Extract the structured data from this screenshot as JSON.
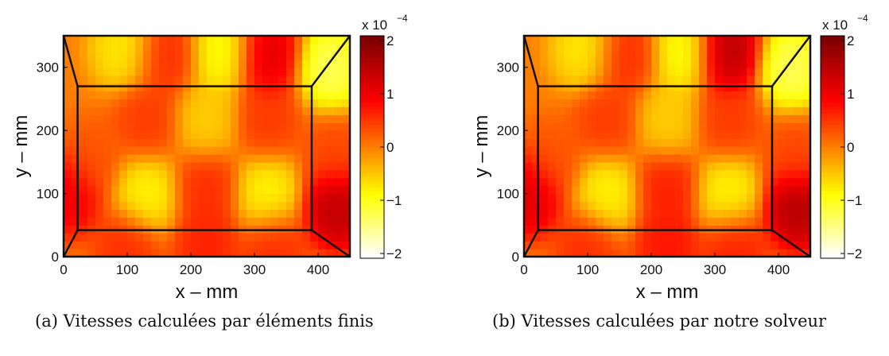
{
  "chart_data": [
    {
      "type": "heatmap",
      "panel_label": "(a)",
      "caption": "Vitesses calculées par éléments finis",
      "xlabel": "x  –  mm",
      "ylabel": "y  –  mm",
      "xlim": [
        0,
        450
      ],
      "ylim": [
        0,
        350
      ],
      "x_ticks": [
        "0",
        "100",
        "200",
        "300",
        "400"
      ],
      "y_ticks": [
        "0",
        "100",
        "200",
        "300"
      ],
      "colorbar": {
        "multiplier": "x 10",
        "exponent": "−4",
        "range": [
          -2,
          2
        ],
        "tick_labels": [
          "2",
          "1",
          "0",
          "−1",
          "−2"
        ],
        "colormap": "hot"
      },
      "inner_rectangle": {
        "x": [
          22,
          390
        ],
        "y": [
          42,
          270
        ]
      },
      "field_peaks": [
        {
          "x": 45,
          "y": 155,
          "value": 0.3
        },
        {
          "x": 130,
          "y": 215,
          "value": 0.5
        },
        {
          "x": 225,
          "y": 215,
          "value": -0.6
        },
        {
          "x": 320,
          "y": 215,
          "value": 0.5
        },
        {
          "x": 130,
          "y": 100,
          "value": -0.9
        },
        {
          "x": 225,
          "y": 110,
          "value": 0.6
        },
        {
          "x": 320,
          "y": 100,
          "value": -0.9
        },
        {
          "x": 95,
          "y": 330,
          "value": -0.8
        },
        {
          "x": 160,
          "y": 320,
          "value": 0.6
        },
        {
          "x": 250,
          "y": 325,
          "value": -1.0
        },
        {
          "x": 320,
          "y": 320,
          "value": 1.2
        },
        {
          "x": 420,
          "y": 300,
          "value": -1.4
        },
        {
          "x": 425,
          "y": 160,
          "value": 0.4
        },
        {
          "x": 430,
          "y": 80,
          "value": 1.6
        },
        {
          "x": 8,
          "y": 100,
          "value": 1.1
        },
        {
          "x": 100,
          "y": 15,
          "value": 0.6
        },
        {
          "x": 225,
          "y": 20,
          "value": 0.7
        },
        {
          "x": 330,
          "y": 15,
          "value": 0.6
        }
      ]
    },
    {
      "type": "heatmap",
      "panel_label": "(b)",
      "caption": "Vitesses calculées par notre solveur",
      "xlabel": "x  –  mm",
      "ylabel": "y  –  mm",
      "xlim": [
        0,
        450
      ],
      "ylim": [
        0,
        350
      ],
      "x_ticks": [
        "0",
        "100",
        "200",
        "300",
        "400"
      ],
      "y_ticks": [
        "0",
        "100",
        "200",
        "300"
      ],
      "colorbar": {
        "multiplier": "x 10",
        "exponent": "−4",
        "range": [
          -2,
          2
        ],
        "tick_labels": [
          "2",
          "1",
          "0",
          "−1",
          "−2"
        ],
        "colormap": "hot"
      },
      "inner_rectangle": {
        "x": [
          22,
          390
        ],
        "y": [
          42,
          270
        ]
      },
      "field_peaks": [
        {
          "x": 45,
          "y": 155,
          "value": 0.3
        },
        {
          "x": 130,
          "y": 215,
          "value": 0.5
        },
        {
          "x": 225,
          "y": 215,
          "value": -0.6
        },
        {
          "x": 320,
          "y": 215,
          "value": 0.5
        },
        {
          "x": 130,
          "y": 100,
          "value": -0.9
        },
        {
          "x": 225,
          "y": 110,
          "value": 0.7
        },
        {
          "x": 320,
          "y": 100,
          "value": -0.9
        },
        {
          "x": 95,
          "y": 330,
          "value": -0.8
        },
        {
          "x": 160,
          "y": 320,
          "value": 0.6
        },
        {
          "x": 250,
          "y": 325,
          "value": -1.0
        },
        {
          "x": 320,
          "y": 325,
          "value": 1.6
        },
        {
          "x": 420,
          "y": 300,
          "value": -1.4
        },
        {
          "x": 425,
          "y": 160,
          "value": 0.4
        },
        {
          "x": 430,
          "y": 80,
          "value": 1.7
        },
        {
          "x": 8,
          "y": 100,
          "value": 1.3
        },
        {
          "x": 100,
          "y": 15,
          "value": 0.6
        },
        {
          "x": 225,
          "y": 20,
          "value": 0.8
        },
        {
          "x": 330,
          "y": 15,
          "value": 0.7
        }
      ]
    }
  ]
}
